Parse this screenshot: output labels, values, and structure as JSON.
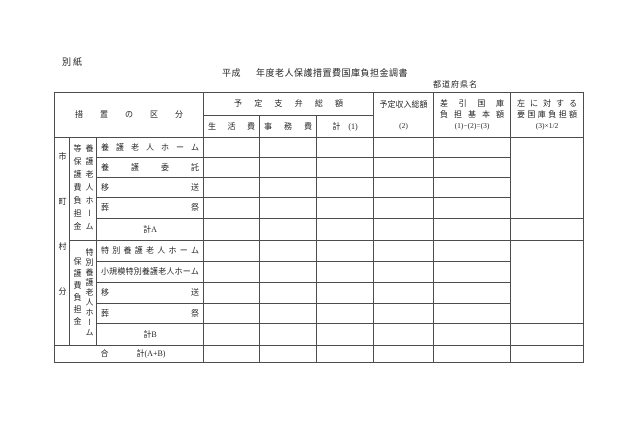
{
  "page": {
    "attachment_label": "別紙",
    "title_era": "平成",
    "title_rest": "年度老人保護措置費国庫負担金調書",
    "prefecture_label": "都道府県名"
  },
  "table": {
    "header": {
      "category": "措置の区分",
      "planned_payment_total": "予定支弁総額",
      "living_cost": "生活費",
      "admin_cost": "事務費",
      "payment_subtotal": "計　(1)",
      "planned_income_total": "予定収入総額",
      "planned_income_no": "(2)",
      "net_base_l1": "差引国庫",
      "net_base_l2": "負担基本額",
      "net_base_formula": "(1)−(2)=(3)",
      "required_share_l1": "左に対する",
      "required_share_l2": "要国庫負担額",
      "required_share_formula": "(3)×1/2"
    },
    "municipal_axis": "市町村分",
    "group_a_col_right": "養護老人ホーム",
    "group_a_col_left": "等保護費負担金",
    "group_b_col_right": "特別養護老人ホーム",
    "group_b_col_left": "保護費負担金",
    "rows_a": [
      "養護老人ホーム",
      "養護委託",
      "移送",
      "葬祭"
    ],
    "subtotal_a": "計A",
    "rows_b": [
      "特別養護老人ホーム",
      "小規模特別養護老人ホーム",
      "移送",
      "葬祭"
    ],
    "subtotal_b": "計B",
    "grand_total_l": "合",
    "grand_total_r": "計(A+B)"
  }
}
